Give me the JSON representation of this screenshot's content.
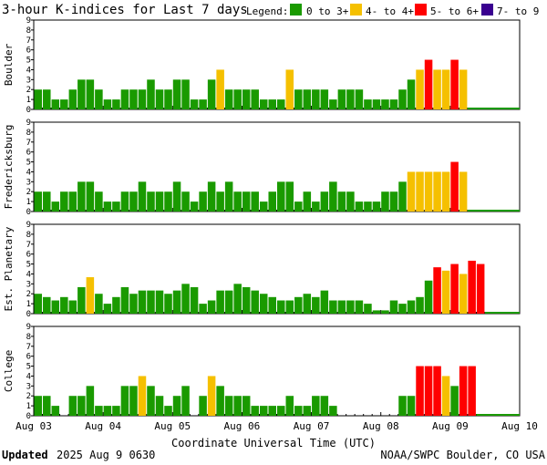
{
  "title": "3-hour K-indices for Last 7 days",
  "legend": {
    "label": "Legend:",
    "items": [
      {
        "text": "0 to 3+",
        "color": "#1a9a00"
      },
      {
        "text": "4- to 4+",
        "color": "#f5c000"
      },
      {
        "text": "5- to 6+",
        "color": "#ff0000"
      },
      {
        "text": "7- to 9",
        "color": "#3a0090"
      }
    ]
  },
  "x_axis": {
    "label": "Coordinate Universal Time (UTC)",
    "tick_labels": [
      "Aug 03",
      "Aug 04",
      "Aug 05",
      "Aug 06",
      "Aug 07",
      "Aug 08",
      "Aug 09",
      "Aug 10"
    ]
  },
  "footer": {
    "updated_label": "Updated",
    "updated_value": "2025 Aug  9 0630",
    "source": "NOAA/SWPC Boulder, CO USA"
  },
  "chart_data": [
    {
      "type": "bar",
      "ylabel": "Boulder",
      "ylim": [
        0,
        9
      ],
      "y_ticks": [
        "0",
        "1",
        "2",
        "3",
        "4",
        "5",
        "6",
        "7",
        "8",
        "9"
      ],
      "values": [
        2,
        2,
        1,
        1,
        2,
        3,
        3,
        2,
        1,
        1,
        2,
        2,
        2,
        3,
        2,
        2,
        3,
        3,
        1,
        1,
        3,
        4,
        2,
        2,
        2,
        2,
        1,
        1,
        1,
        4,
        2,
        2,
        2,
        2,
        1,
        2,
        2,
        2,
        1,
        1,
        1,
        1,
        2,
        3,
        4,
        5,
        4,
        4,
        5,
        4
      ]
    },
    {
      "type": "bar",
      "ylabel": "Fredericksburg",
      "ylim": [
        0,
        9
      ],
      "y_ticks": [
        "0",
        "1",
        "2",
        "3",
        "4",
        "5",
        "6",
        "7",
        "8",
        "9"
      ],
      "values": [
        2,
        2,
        1,
        2,
        2,
        3,
        3,
        2,
        1,
        1,
        2,
        2,
        3,
        2,
        2,
        2,
        3,
        2,
        1,
        2,
        3,
        2,
        3,
        2,
        2,
        2,
        1,
        2,
        3,
        3,
        1,
        2,
        1,
        2,
        3,
        2,
        2,
        1,
        1,
        1,
        2,
        2,
        3,
        4,
        4,
        4,
        4,
        4,
        5,
        4
      ]
    },
    {
      "type": "bar",
      "ylabel": "Est. Planetary",
      "ylim": [
        0,
        9
      ],
      "y_ticks": [
        "0",
        "1",
        "2",
        "3",
        "4",
        "5",
        "6",
        "7",
        "8",
        "9"
      ],
      "values": [
        2,
        1.67,
        1.33,
        1.67,
        1.33,
        2.67,
        3.67,
        2,
        1,
        1.67,
        2.67,
        2,
        2.33,
        2.33,
        2.33,
        2,
        2.33,
        3,
        2.67,
        1,
        1.33,
        2.33,
        2.33,
        3,
        2.67,
        2.33,
        2,
        1.67,
        1.33,
        1.33,
        1.67,
        2,
        1.67,
        2.33,
        1.33,
        1.33,
        1.33,
        1.33,
        1,
        0.33,
        0.33,
        1.33,
        1,
        1.33,
        1.67,
        3.33,
        4.67,
        4.33,
        5,
        4,
        5.33,
        5
      ]
    },
    {
      "type": "bar",
      "ylabel": "College",
      "ylim": [
        0,
        9
      ],
      "y_ticks": [
        "0",
        "1",
        "2",
        "3",
        "4",
        "5",
        "6",
        "7",
        "8",
        "9"
      ],
      "values": [
        2,
        2,
        1,
        0,
        2,
        2,
        3,
        1,
        1,
        1,
        3,
        3,
        4,
        3,
        2,
        1,
        2,
        3,
        0,
        2,
        4,
        3,
        2,
        2,
        2,
        1,
        1,
        1,
        1,
        2,
        1,
        1,
        2,
        2,
        1,
        0,
        0,
        0,
        0,
        0,
        0,
        0,
        2,
        2,
        5,
        5,
        5,
        4,
        3,
        5,
        5
      ]
    }
  ]
}
